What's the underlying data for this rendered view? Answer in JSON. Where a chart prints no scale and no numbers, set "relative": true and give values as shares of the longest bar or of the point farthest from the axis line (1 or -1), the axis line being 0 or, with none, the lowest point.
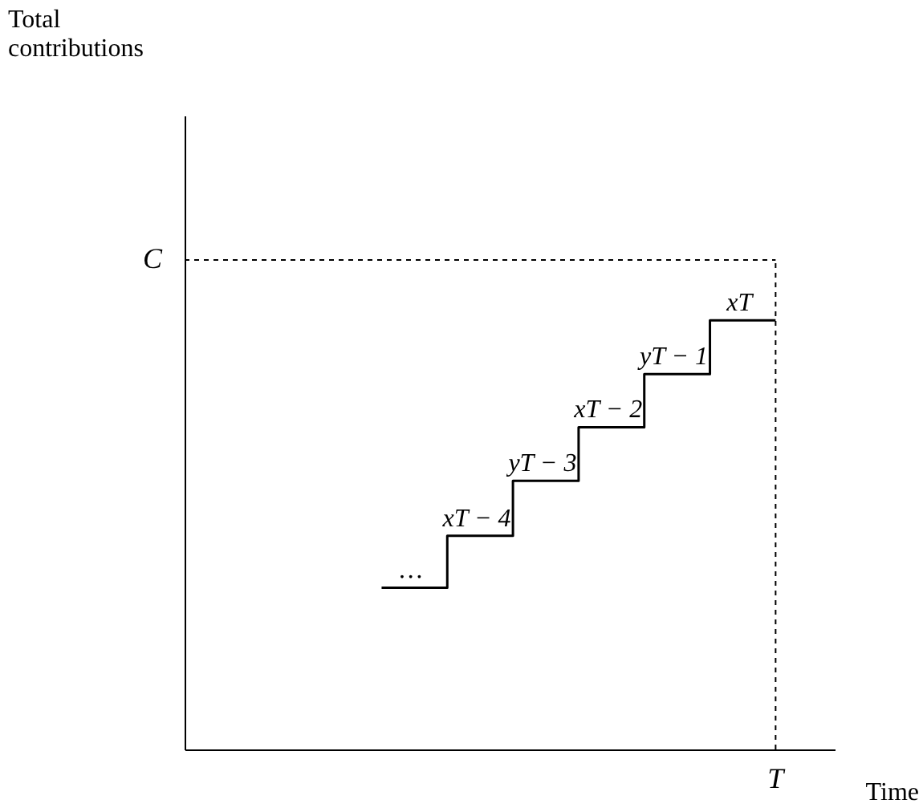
{
  "chart_data": {
    "type": "step",
    "relative": true,
    "xlabel": "Time",
    "categories": [
      null,
      null,
      null,
      null,
      null,
      null,
      null,
      null,
      null,
      null
    ],
    "values": [
      null,
      null,
      null,
      0.377,
      0.498,
      0.626,
      0.751,
      0.875,
      1,
      1
    ],
    "color": "#000000",
    "ref_lines": [
      {
        "axis": "y",
        "value": 1.141,
        "label": "C",
        "line_style": "dotted",
        "color": "#000000"
      }
    ],
    "annotations": [
      "Total contributions",
      "…",
      "xT − 4",
      "yT − 3",
      "xT − 2",
      "yT − 1",
      "xT",
      "T"
    ],
    "grid": false,
    "line_style": "solid",
    "marker": "none"
  }
}
